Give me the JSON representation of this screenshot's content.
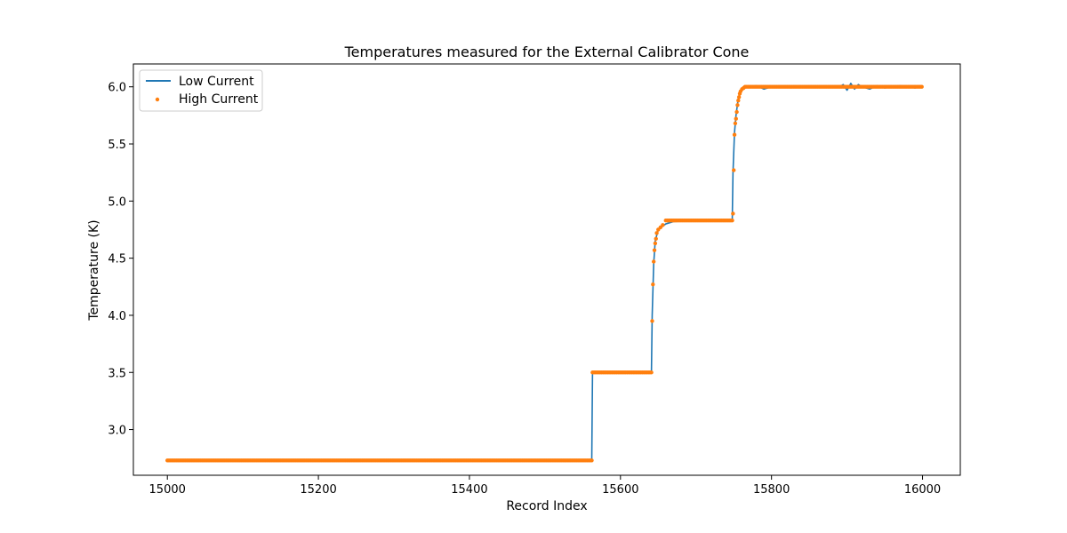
{
  "chart_data": {
    "type": "line",
    "title": "Temperatures measured for the External Calibrator Cone",
    "xlabel": "Record Index",
    "ylabel": "Temperature (K)",
    "xlim": [
      14955,
      16050
    ],
    "ylim": [
      2.6,
      6.2
    ],
    "xticks": [
      15000,
      15200,
      15400,
      15600,
      15800,
      16000
    ],
    "yticks": [
      3.0,
      3.5,
      4.0,
      4.5,
      5.0,
      5.5,
      6.0
    ],
    "ytick_labels": [
      "3.0",
      "3.5",
      "4.0",
      "4.5",
      "5.0",
      "5.5",
      "6.0"
    ],
    "grid": false,
    "legend_position": "top-left",
    "series": [
      {
        "name": "Low Current",
        "style": "line",
        "color": "#1f77b4",
        "points": [
          [
            15000,
            2.73
          ],
          [
            15562,
            2.73
          ],
          [
            15563,
            3.5
          ],
          [
            15641,
            3.5
          ],
          [
            15642,
            4.0
          ],
          [
            15644,
            4.45
          ],
          [
            15646,
            4.65
          ],
          [
            15650,
            4.75
          ],
          [
            15660,
            4.8
          ],
          [
            15670,
            4.82
          ],
          [
            15700,
            4.83
          ],
          [
            15748,
            4.83
          ],
          [
            15749,
            5.25
          ],
          [
            15751,
            5.6
          ],
          [
            15753,
            5.75
          ],
          [
            15756,
            5.9
          ],
          [
            15760,
            5.98
          ],
          [
            15770,
            6.0
          ],
          [
            15780,
            6.01
          ],
          [
            15790,
            5.98
          ],
          [
            15800,
            6.0
          ],
          [
            15830,
            6.0
          ],
          [
            15860,
            6.0
          ],
          [
            15890,
            6.0
          ],
          [
            15895,
            6.02
          ],
          [
            15900,
            5.97
          ],
          [
            15905,
            6.03
          ],
          [
            15910,
            5.98
          ],
          [
            15915,
            6.02
          ],
          [
            15920,
            6.0
          ],
          [
            15930,
            5.98
          ],
          [
            15940,
            6.01
          ],
          [
            15950,
            5.99
          ],
          [
            15960,
            6.0
          ],
          [
            15970,
            6.01
          ],
          [
            15980,
            6.0
          ],
          [
            15990,
            5.99
          ],
          [
            16000,
            6.0
          ]
        ]
      },
      {
        "name": "High Current",
        "style": "scatter",
        "color": "#ff7f0e",
        "segments": [
          {
            "x_start": 15000,
            "x_end": 15563,
            "y": 2.73
          },
          {
            "x_start": 15563,
            "x_end": 15641,
            "y": 3.5
          },
          {
            "x_start": 15660,
            "x_end": 15748,
            "y": 4.83
          },
          {
            "x_start": 15765,
            "x_end": 16000,
            "y": 6.0
          }
        ],
        "points": [
          [
            15642,
            3.95
          ],
          [
            15643,
            4.27
          ],
          [
            15644,
            4.47
          ],
          [
            15645,
            4.57
          ],
          [
            15646,
            4.63
          ],
          [
            15647,
            4.67
          ],
          [
            15648,
            4.72
          ],
          [
            15650,
            4.75
          ],
          [
            15653,
            4.77
          ],
          [
            15656,
            4.79
          ],
          [
            15749,
            4.89
          ],
          [
            15750,
            5.27
          ],
          [
            15751,
            5.58
          ],
          [
            15752,
            5.68
          ],
          [
            15753,
            5.72
          ],
          [
            15754,
            5.78
          ],
          [
            15755,
            5.84
          ],
          [
            15756,
            5.88
          ],
          [
            15757,
            5.91
          ],
          [
            15758,
            5.94
          ],
          [
            15759,
            5.96
          ],
          [
            15761,
            5.98
          ],
          [
            15763,
            5.99
          ]
        ]
      }
    ]
  }
}
